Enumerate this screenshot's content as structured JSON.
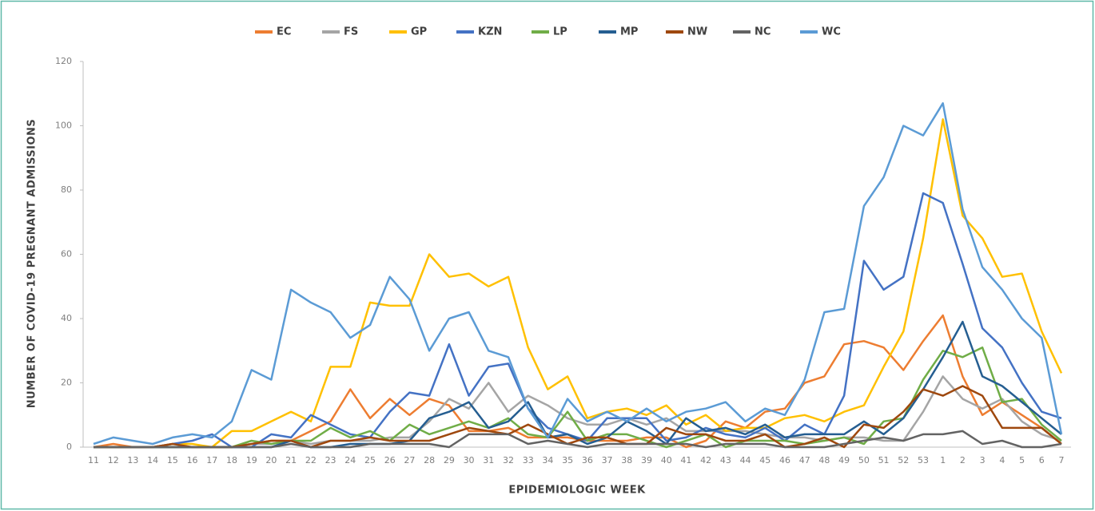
{
  "chart_data": {
    "type": "line",
    "x_label": "EPIDEMIOLOGIC WEEK",
    "y_label": "NUMBER OF COVID-19 PREGNANT ADMISSIONS",
    "categories": [
      "11",
      "12",
      "13",
      "14",
      "15",
      "16",
      "17",
      "18",
      "19",
      "20",
      "21",
      "22",
      "23",
      "24",
      "25",
      "26",
      "27",
      "28",
      "29",
      "30",
      "31",
      "32",
      "33",
      "34",
      "35",
      "36",
      "37",
      "38",
      "39",
      "40",
      "41",
      "42",
      "43",
      "44",
      "45",
      "46",
      "47",
      "48",
      "49",
      "50",
      "51",
      "52",
      "53",
      "1",
      "2",
      "3",
      "4",
      "5",
      "6",
      "7"
    ],
    "ylim": [
      0,
      120
    ],
    "yticks": [
      0,
      20,
      40,
      60,
      80,
      100,
      120
    ],
    "series": [
      {
        "name": "EC",
        "color": "#ed7d31",
        "values": [
          0,
          1,
          0,
          0,
          0,
          0,
          0,
          0,
          1,
          2,
          2,
          5,
          8,
          18,
          9,
          15,
          10,
          15,
          13,
          5,
          5,
          6,
          3,
          3,
          3,
          2,
          2,
          2,
          3,
          3,
          0,
          2,
          8,
          6,
          11,
          12,
          20,
          22,
          32,
          33,
          31,
          24,
          33,
          41,
          22,
          10,
          14,
          10,
          6,
          1
        ]
      },
      {
        "name": "FS",
        "color": "#a5a5a5",
        "values": [
          0,
          0,
          0,
          0,
          0,
          0,
          0,
          0,
          1,
          1,
          2,
          1,
          2,
          2,
          2,
          3,
          3,
          8,
          15,
          12,
          20,
          11,
          16,
          13,
          9,
          7,
          7,
          9,
          7,
          9,
          5,
          5,
          5,
          5,
          4,
          3,
          3,
          2,
          3,
          3,
          2,
          2,
          11,
          22,
          15,
          12,
          15,
          8,
          4,
          2
        ]
      },
      {
        "name": "GP",
        "color": "#ffc000",
        "values": [
          0,
          0,
          0,
          0,
          1,
          1,
          0,
          5,
          5,
          8,
          11,
          8,
          25,
          25,
          45,
          44,
          44,
          60,
          53,
          54,
          50,
          53,
          31,
          18,
          22,
          9,
          11,
          12,
          10,
          13,
          7,
          10,
          5,
          6,
          6,
          9,
          10,
          8,
          11,
          13,
          25,
          36,
          65,
          102,
          72,
          65,
          53,
          54,
          36,
          23
        ]
      },
      {
        "name": "KZN",
        "color": "#4472c4",
        "values": [
          0,
          0,
          0,
          0,
          1,
          2,
          4,
          0,
          0,
          4,
          3,
          10,
          7,
          4,
          3,
          11,
          17,
          16,
          32,
          16,
          25,
          26,
          12,
          6,
          4,
          2,
          9,
          9,
          9,
          2,
          3,
          6,
          4,
          3,
          6,
          2,
          7,
          4,
          16,
          58,
          49,
          53,
          79,
          76,
          57,
          37,
          31,
          20,
          11,
          9
        ]
      },
      {
        "name": "LP",
        "color": "#70ad47",
        "values": [
          0,
          0,
          0,
          0,
          0,
          0,
          0,
          0,
          2,
          1,
          2,
          2,
          6,
          3,
          5,
          2,
          7,
          4,
          6,
          8,
          6,
          9,
          4,
          3,
          11,
          2,
          4,
          4,
          2,
          0,
          2,
          4,
          0,
          2,
          2,
          2,
          1,
          2,
          3,
          1,
          8,
          9,
          21,
          30,
          28,
          31,
          14,
          15,
          7,
          2
        ]
      },
      {
        "name": "MP",
        "color": "#255e91",
        "values": [
          0,
          0,
          0,
          0,
          0,
          0,
          0,
          0,
          0,
          0,
          2,
          0,
          0,
          1,
          1,
          1,
          2,
          9,
          11,
          14,
          6,
          8,
          14,
          3,
          4,
          1,
          3,
          8,
          5,
          1,
          9,
          5,
          6,
          4,
          7,
          3,
          4,
          4,
          4,
          8,
          4,
          9,
          18,
          28,
          39,
          22,
          19,
          14,
          9,
          4
        ]
      },
      {
        "name": "NW",
        "color": "#9e480e",
        "values": [
          0,
          0,
          0,
          0,
          1,
          0,
          0,
          0,
          1,
          2,
          2,
          0,
          2,
          2,
          3,
          2,
          2,
          2,
          4,
          6,
          5,
          4,
          7,
          4,
          1,
          3,
          3,
          1,
          1,
          6,
          4,
          4,
          2,
          2,
          4,
          0,
          1,
          3,
          0,
          7,
          6,
          11,
          18,
          16,
          19,
          16,
          6,
          6,
          6,
          1
        ]
      },
      {
        "name": "NC",
        "color": "#636363",
        "values": [
          0,
          0,
          0,
          0,
          0,
          0,
          0,
          0,
          0,
          0,
          1,
          0,
          0,
          0,
          1,
          1,
          1,
          1,
          0,
          4,
          4,
          4,
          1,
          2,
          1,
          0,
          1,
          1,
          1,
          1,
          1,
          0,
          1,
          1,
          1,
          0,
          0,
          0,
          1,
          2,
          3,
          2,
          4,
          4,
          5,
          1,
          2,
          0,
          0,
          1
        ]
      },
      {
        "name": "WC",
        "color": "#5b9bd5",
        "values": [
          1,
          3,
          2,
          1,
          3,
          4,
          3,
          8,
          24,
          21,
          49,
          45,
          42,
          34,
          38,
          53,
          46,
          30,
          40,
          42,
          30,
          28,
          12,
          3,
          15,
          8,
          11,
          8,
          12,
          8,
          11,
          12,
          14,
          8,
          12,
          10,
          21,
          42,
          43,
          75,
          84,
          100,
          97,
          107,
          74,
          56,
          49,
          40,
          34,
          4
        ]
      }
    ]
  }
}
